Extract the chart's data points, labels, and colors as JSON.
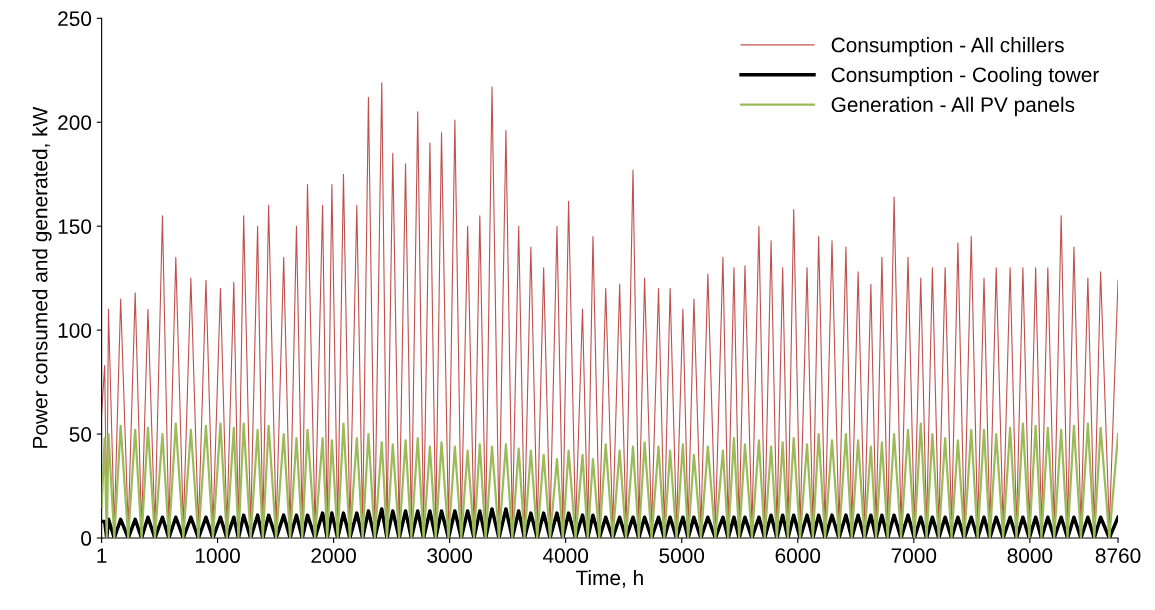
{
  "chart_data": {
    "type": "line",
    "xlabel": "Time, h",
    "ylabel": "Power consumed and generated, kW",
    "x": [
      1,
      27,
      45,
      60,
      110,
      165,
      230,
      290,
      345,
      400,
      460,
      525,
      580,
      640,
      705,
      770,
      835,
      900,
      960,
      1025,
      1080,
      1140,
      1180,
      1225,
      1285,
      1345,
      1390,
      1440,
      1505,
      1570,
      1625,
      1680,
      1730,
      1775,
      1840,
      1905,
      1945,
      1985,
      2035,
      2085,
      2140,
      2200,
      2250,
      2300,
      2355,
      2415,
      2460,
      2510,
      2565,
      2620,
      2670,
      2725,
      2775,
      2830,
      2880,
      2930,
      2990,
      3045,
      3100,
      3155,
      3210,
      3260,
      3310,
      3365,
      3425,
      3485,
      3540,
      3595,
      3645,
      3700,
      3755,
      3810,
      3865,
      3925,
      3975,
      4025,
      4085,
      4145,
      4190,
      4235,
      4290,
      4345,
      4405,
      4465,
      4520,
      4580,
      4630,
      4680,
      4740,
      4800,
      4850,
      4900,
      4955,
      5010,
      5055,
      5105,
      5165,
      5225,
      5290,
      5355,
      5400,
      5450,
      5495,
      5545,
      5605,
      5665,
      5715,
      5770,
      5820,
      5870,
      5915,
      5965,
      6020,
      6080,
      6130,
      6180,
      6235,
      6295,
      6355,
      6415,
      6465,
      6520,
      6575,
      6630,
      6675,
      6725,
      6775,
      6830,
      6890,
      6950,
      7005,
      7060,
      7110,
      7160,
      7215,
      7270,
      7325,
      7380,
      7435,
      7495,
      7550,
      7605,
      7655,
      7710,
      7770,
      7830,
      7885,
      7940,
      7995,
      8050,
      8100,
      8155,
      8210,
      8270,
      8325,
      8380,
      8440,
      8500,
      8555,
      8610,
      8685,
      8760
    ],
    "series": [
      {
        "name": "Consumption - All chillers",
        "color": "#c0504d",
        "values": [
          60,
          83,
          5,
          110,
          5,
          115,
          5,
          118,
          5,
          110,
          5,
          155,
          5,
          135,
          5,
          125,
          5,
          124,
          5,
          120,
          5,
          123,
          5,
          155,
          5,
          150,
          5,
          160,
          5,
          135,
          5,
          150,
          5,
          170,
          5,
          160,
          5,
          170,
          5,
          175,
          5,
          160,
          5,
          212,
          5,
          219,
          5,
          185,
          5,
          180,
          5,
          205,
          5,
          190,
          5,
          195,
          5,
          201,
          5,
          150,
          5,
          155,
          5,
          217,
          5,
          196,
          5,
          150,
          5,
          140,
          5,
          130,
          5,
          150,
          5,
          162,
          5,
          110,
          5,
          145,
          5,
          120,
          5,
          122,
          5,
          177,
          5,
          125,
          5,
          120,
          5,
          120,
          5,
          110,
          5,
          115,
          5,
          127,
          5,
          135,
          5,
          130,
          5,
          131,
          5,
          150,
          5,
          143,
          5,
          130,
          5,
          158,
          5,
          130,
          5,
          145,
          5,
          143,
          5,
          140,
          5,
          128,
          5,
          122,
          5,
          135,
          5,
          164,
          5,
          135,
          5,
          125,
          5,
          130,
          5,
          130,
          5,
          142,
          5,
          145,
          5,
          125,
          5,
          130,
          5,
          130,
          5,
          130,
          5,
          130,
          5,
          130,
          5,
          155,
          5,
          140,
          5,
          125,
          5,
          128,
          5,
          124
        ]
      },
      {
        "name": "Consumption - Cooling tower",
        "color": "#000000",
        "values": [
          8,
          8,
          0,
          9,
          0,
          9,
          0,
          9,
          0,
          10,
          0,
          10,
          0,
          10,
          0,
          10,
          0,
          10,
          0,
          10,
          0,
          10,
          0,
          11,
          0,
          11,
          0,
          11,
          0,
          11,
          0,
          11,
          0,
          11,
          0,
          12,
          0,
          12,
          0,
          12,
          0,
          12,
          0,
          13,
          0,
          14,
          0,
          13,
          0,
          13,
          0,
          13,
          0,
          13,
          0,
          13,
          0,
          13,
          0,
          13,
          0,
          13,
          0,
          14,
          0,
          14,
          0,
          13,
          0,
          12,
          0,
          12,
          0,
          12,
          0,
          12,
          0,
          11,
          0,
          11,
          0,
          10,
          0,
          10,
          0,
          10,
          0,
          10,
          0,
          10,
          0,
          10,
          0,
          10,
          0,
          10,
          0,
          10,
          0,
          10,
          0,
          10,
          0,
          10,
          0,
          10,
          0,
          11,
          0,
          11,
          0,
          11,
          0,
          11,
          0,
          11,
          0,
          11,
          0,
          11,
          0,
          11,
          0,
          11,
          0,
          11,
          0,
          11,
          0,
          11,
          0,
          10,
          0,
          10,
          0,
          10,
          0,
          10,
          0,
          10,
          0,
          10,
          0,
          10,
          0,
          10,
          0,
          10,
          0,
          10,
          0,
          10,
          0,
          10,
          0,
          10,
          0,
          10,
          0,
          10,
          0,
          10
        ]
      },
      {
        "name": "Generation - All PV panels",
        "color": "#9bbb59",
        "values": [
          15,
          48,
          0,
          50,
          0,
          54,
          0,
          52,
          0,
          53,
          0,
          50,
          0,
          55,
          0,
          52,
          0,
          54,
          0,
          55,
          0,
          53,
          0,
          55,
          0,
          52,
          0,
          54,
          0,
          50,
          0,
          48,
          0,
          52,
          0,
          48,
          0,
          47,
          0,
          55,
          0,
          48,
          0,
          50,
          0,
          46,
          0,
          45,
          0,
          47,
          0,
          48,
          0,
          44,
          0,
          46,
          0,
          44,
          0,
          42,
          0,
          45,
          0,
          44,
          0,
          45,
          0,
          43,
          0,
          42,
          0,
          40,
          0,
          38,
          0,
          42,
          0,
          40,
          0,
          38,
          0,
          45,
          0,
          42,
          0,
          44,
          0,
          46,
          0,
          44,
          0,
          42,
          0,
          45,
          0,
          40,
          0,
          44,
          0,
          42,
          0,
          48,
          0,
          45,
          0,
          47,
          0,
          44,
          0,
          46,
          0,
          48,
          0,
          45,
          0,
          50,
          0,
          47,
          0,
          50,
          0,
          47,
          0,
          44,
          0,
          46,
          0,
          50,
          0,
          52,
          0,
          55,
          0,
          50,
          0,
          48,
          0,
          47,
          0,
          52,
          0,
          52,
          0,
          50,
          0,
          53,
          0,
          55,
          0,
          54,
          0,
          53,
          0,
          52,
          0,
          54,
          0,
          55,
          0,
          53,
          0,
          50
        ]
      }
    ],
    "xlim": [
      1,
      8760
    ],
    "xticks": [
      1,
      1000,
      2000,
      3000,
      4000,
      5000,
      6000,
      7000,
      8000,
      8760
    ],
    "ylim": [
      0,
      250
    ],
    "yticks": [
      0,
      50,
      100,
      150,
      200,
      250
    ],
    "legend": "top right"
  }
}
